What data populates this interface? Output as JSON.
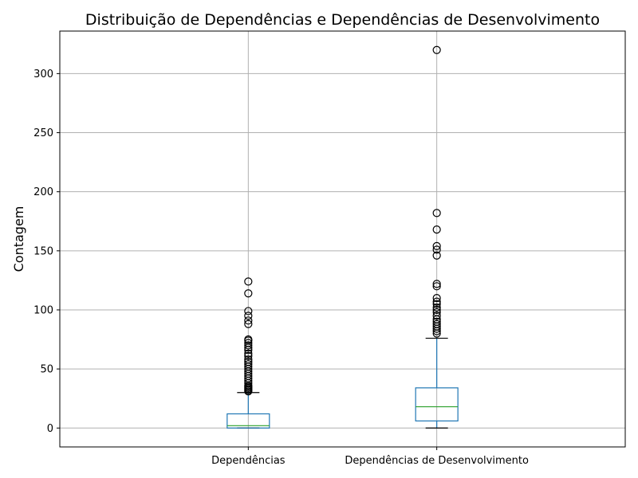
{
  "chart_data": {
    "type": "box",
    "title": "Distribuição de Dependências e Dependências de Desenvolvimento",
    "xlabel": "",
    "ylabel": "Contagem",
    "ylim": [
      -16,
      336
    ],
    "yticks": [
      0,
      50,
      100,
      150,
      200,
      250,
      300
    ],
    "grid": true,
    "categories": [
      "Dependências",
      "Dependências de Desenvolvimento"
    ],
    "boxes": [
      {
        "category": "Dependências",
        "whisker_low": 0,
        "q1": 0,
        "median": 2,
        "q3": 12,
        "whisker_high": 30,
        "fliers": [
          124,
          114,
          99,
          95,
          91,
          88,
          75,
          74,
          72,
          70,
          68,
          66,
          63,
          61,
          58,
          56,
          54,
          52,
          50,
          48,
          46,
          44,
          42,
          40,
          38,
          36,
          35,
          34,
          33,
          32,
          31
        ]
      },
      {
        "category": "Dependências de Desenvolvimento",
        "whisker_low": 0,
        "q1": 6,
        "median": 18,
        "q3": 34,
        "whisker_high": 76,
        "fliers": [
          320,
          182,
          168,
          154,
          151,
          146,
          122,
          120,
          110,
          107,
          105,
          102,
          100,
          98,
          95,
          92,
          90,
          88,
          86,
          84,
          82,
          80
        ]
      }
    ]
  }
}
